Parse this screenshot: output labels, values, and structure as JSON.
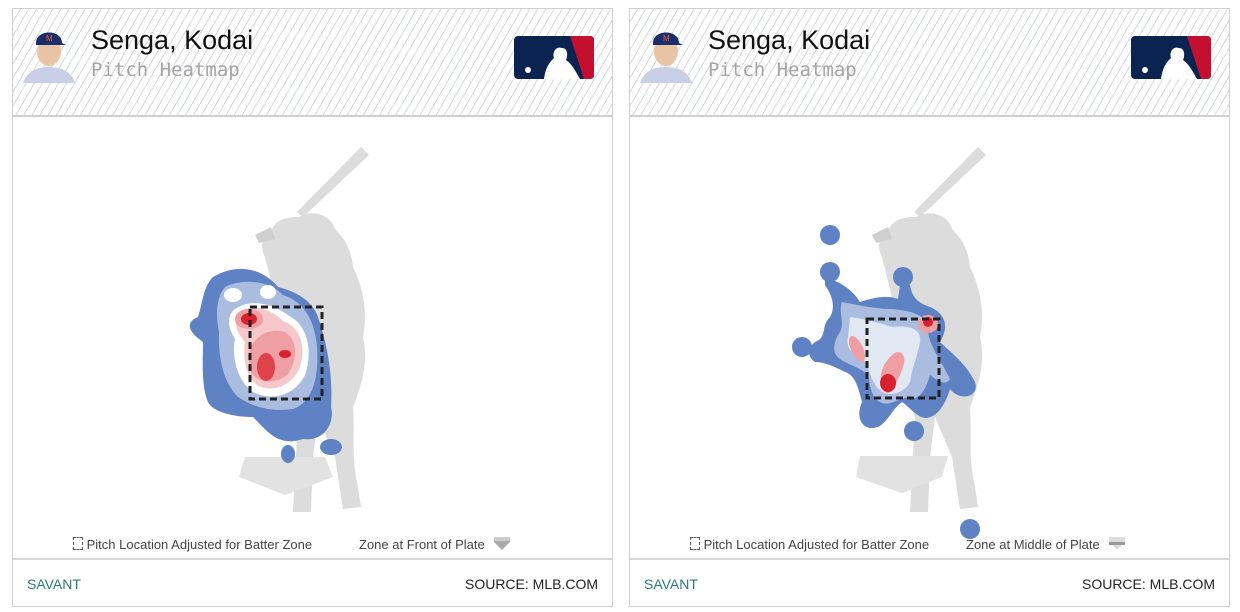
{
  "panels": [
    {
      "player_name": "Senga, Kodai",
      "subtitle": "Pitch Heatmap",
      "legend_adjusted": "Pitch Location Adjusted for Batter Zone",
      "legend_zone": "Zone at Front of Plate",
      "footer_left": "SAVANT",
      "footer_right": "SOURCE: MLB.COM"
    },
    {
      "player_name": "Senga, Kodai",
      "subtitle": "Pitch Heatmap",
      "legend_adjusted": "Pitch Location Adjusted for Batter Zone",
      "legend_zone": "Zone at Middle of Plate",
      "footer_left": "SAVANT",
      "footer_right": "SOURCE: MLB.COM"
    }
  ],
  "colors": {
    "density_low": "#5f82c4",
    "density_mid": "#aabde0",
    "density_lowmid": "#e2e8f3",
    "density_high": "#ef9ea3",
    "density_peak": "#d8202e",
    "savant": "#2a7a7a",
    "mlb_navy": "#0b2350",
    "mlb_red": "#c4102e"
  }
}
